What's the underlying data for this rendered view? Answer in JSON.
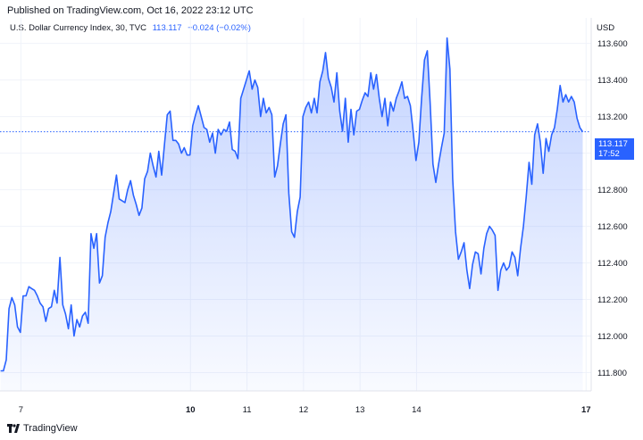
{
  "header": {
    "published": "Published on TradingView.com, Oct 16, 2022 23:12 UTC",
    "symbol": "U.S. Dollar Currency Index, 30, TVC",
    "last": "113.117",
    "change": "−0.024 (−0.02%)",
    "currency": "USD"
  },
  "price_tag": {
    "value": "113.117",
    "countdown": "17:52"
  },
  "footer": {
    "brand": "TradingView"
  },
  "colors": {
    "line": "#2962ff",
    "fill_top": "#2962ff",
    "grid": "#f0f3fa",
    "tag": "#2962ff"
  },
  "chart_data": {
    "type": "area",
    "ylim": [
      111.7,
      113.74
    ],
    "xlim": [
      6.63,
      17.09
    ],
    "y_ticks": [
      111.8,
      112.0,
      112.2,
      112.4,
      112.6,
      112.8,
      113.0,
      113.2,
      113.4,
      113.6
    ],
    "y_tick_labels": [
      "111.800",
      "112.000",
      "112.200",
      "112.400",
      "112.600",
      "112.800",
      "113.000",
      "113.200",
      "113.400",
      "113.600"
    ],
    "x_ticks": [
      7,
      10,
      11,
      12,
      13,
      14,
      17
    ],
    "x_tick_labels": [
      "7",
      "10",
      "11",
      "12",
      "13",
      "14",
      "17"
    ],
    "x_tick_bold": [
      false,
      true,
      false,
      false,
      false,
      false,
      true
    ],
    "last_value": 113.117,
    "grid": true,
    "series": [
      {
        "x": [
          6.64,
          6.69,
          6.74,
          6.79,
          6.84,
          6.89,
          6.94,
          6.99,
          7.04,
          7.09,
          7.14,
          7.19,
          7.24,
          7.29,
          7.34,
          7.39,
          7.44,
          7.49,
          7.54,
          7.59,
          7.64,
          7.69,
          7.74,
          7.79,
          7.84,
          7.89,
          7.94,
          7.99,
          8.04,
          8.09,
          8.14,
          8.19,
          8.24,
          8.29,
          8.34,
          8.39,
          8.44,
          8.49,
          8.54,
          8.59,
          8.64,
          8.69,
          8.74,
          8.79,
          8.84,
          8.89,
          8.94,
          8.99,
          9.04,
          9.09,
          9.14,
          9.19,
          9.24,
          9.29,
          9.34,
          9.39,
          9.44,
          9.49,
          9.54,
          9.59,
          9.64,
          9.69,
          9.74,
          9.79,
          9.84,
          9.89,
          9.94,
          9.99,
          10.04,
          10.09,
          10.14,
          10.19,
          10.24,
          10.29,
          10.34,
          10.39,
          10.44,
          10.49,
          10.54,
          10.59,
          10.64,
          10.69,
          10.74,
          10.79,
          10.84,
          10.89,
          10.94,
          10.99,
          11.04,
          11.09,
          11.14,
          11.19,
          11.24,
          11.29,
          11.34,
          11.39,
          11.44,
          11.49,
          11.54,
          11.59,
          11.64,
          11.69,
          11.74,
          11.79,
          11.84,
          11.89,
          11.94,
          11.99,
          12.04,
          12.09,
          12.14,
          12.19,
          12.24,
          12.29,
          12.34,
          12.39,
          12.44,
          12.49,
          12.54,
          12.59,
          12.64,
          12.69,
          12.74,
          12.79,
          12.84,
          12.89,
          12.94,
          12.99,
          13.04,
          13.09,
          13.14,
          13.19,
          13.24,
          13.29,
          13.34,
          13.39,
          13.44,
          13.49,
          13.54,
          13.59,
          13.64,
          13.69,
          13.74,
          13.79,
          13.84,
          13.89,
          13.94,
          13.99,
          14.04,
          14.09,
          14.14,
          14.19,
          14.24,
          14.29,
          14.34,
          14.39,
          14.44,
          14.49,
          14.54,
          14.59,
          14.64,
          14.69,
          14.74,
          14.79,
          14.84,
          14.89,
          14.94,
          14.99,
          15.04,
          15.09,
          15.14,
          15.19,
          15.24,
          15.29,
          15.34,
          15.39,
          15.44,
          15.49,
          15.54,
          15.59,
          15.64,
          15.69,
          15.74,
          15.79,
          15.84,
          15.89,
          15.94,
          15.99,
          16.04,
          16.09,
          16.14,
          16.19,
          16.24,
          16.29,
          16.34,
          16.39,
          16.44,
          16.49,
          16.54,
          16.59,
          16.64,
          16.69,
          16.74,
          16.79,
          16.84,
          16.89,
          16.94
        ],
        "y": [
          111.81,
          111.81,
          111.87,
          112.15,
          112.21,
          112.17,
          112.05,
          112.02,
          112.22,
          112.22,
          112.27,
          112.26,
          112.25,
          112.22,
          112.18,
          112.16,
          112.08,
          112.15,
          112.16,
          112.25,
          112.18,
          112.43,
          112.17,
          112.12,
          112.04,
          112.17,
          112.0,
          112.09,
          112.05,
          112.11,
          112.13,
          112.07,
          112.56,
          112.48,
          112.56,
          112.29,
          112.33,
          112.54,
          112.62,
          112.68,
          112.78,
          112.88,
          112.75,
          112.74,
          112.73,
          112.8,
          112.85,
          112.77,
          112.72,
          112.66,
          112.7,
          112.86,
          112.9,
          113.0,
          112.93,
          112.87,
          113.01,
          112.88,
          113.05,
          113.21,
          113.23,
          113.07,
          113.07,
          113.05,
          113.0,
          113.03,
          112.99,
          112.99,
          113.15,
          113.21,
          113.26,
          113.2,
          113.14,
          113.13,
          113.06,
          113.11,
          113.0,
          113.13,
          113.1,
          113.13,
          113.12,
          113.17,
          113.02,
          113.01,
          112.97,
          113.3,
          113.35,
          113.4,
          113.45,
          113.35,
          113.4,
          113.36,
          113.2,
          113.3,
          113.22,
          113.25,
          113.21,
          112.87,
          112.93,
          113.05,
          113.16,
          113.21,
          112.78,
          112.57,
          112.54,
          112.68,
          112.76,
          113.2,
          113.25,
          113.28,
          113.22,
          113.3,
          113.22,
          113.39,
          113.45,
          113.55,
          113.41,
          113.36,
          113.28,
          113.44,
          113.23,
          113.12,
          113.3,
          113.06,
          113.24,
          113.1,
          113.23,
          113.24,
          113.29,
          113.33,
          113.31,
          113.44,
          113.35,
          113.43,
          113.3,
          113.2,
          113.3,
          113.15,
          113.28,
          113.23,
          113.3,
          113.34,
          113.39,
          113.3,
          113.31,
          113.26,
          113.12,
          112.96,
          113.06,
          113.3,
          113.51,
          113.56,
          113.28,
          112.94,
          112.84,
          112.94,
          113.03,
          113.11,
          113.63,
          113.46,
          112.86,
          112.57,
          112.42,
          112.46,
          112.51,
          112.36,
          112.26,
          112.39,
          112.46,
          112.45,
          112.34,
          112.48,
          112.56,
          112.6,
          112.58,
          112.55,
          112.25,
          112.36,
          112.4,
          112.36,
          112.38,
          112.46,
          112.43,
          112.33,
          112.48,
          112.6,
          112.76,
          112.95,
          112.83,
          113.1,
          113.16,
          113.06,
          112.89,
          113.08,
          113.01,
          113.1,
          113.14,
          113.24,
          113.37,
          113.28,
          113.32,
          113.28,
          113.31,
          113.28,
          113.19,
          113.14,
          113.117
        ]
      }
    ]
  }
}
